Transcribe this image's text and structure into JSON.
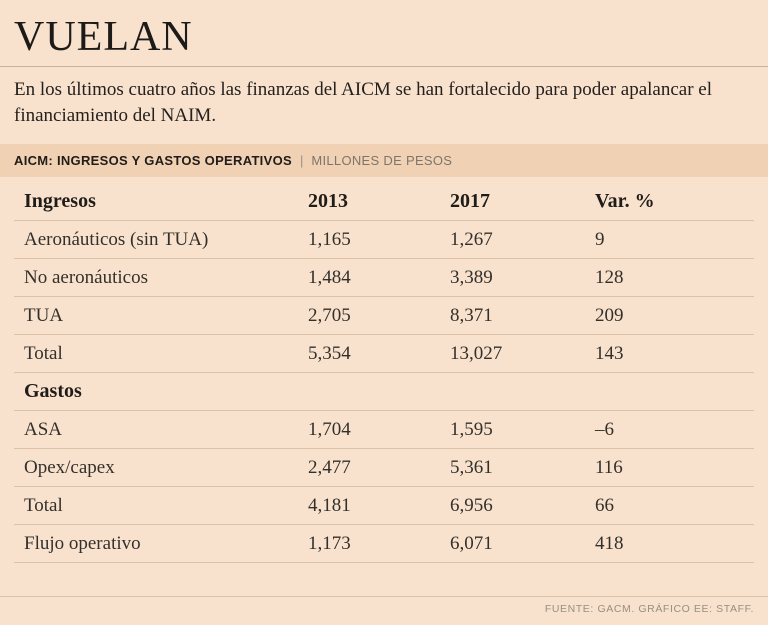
{
  "title": "VUELAN",
  "subtitle": "En los últimos cuatro años las finanzas del AICM se han fortalecido para poder apalancar el financiamiento del NAIM.",
  "band": {
    "title": "AICM: INGRESOS Y GASTOS OPERATIVOS",
    "separator": "|",
    "unit": "MILLONES DE PESOS"
  },
  "source": "FUENTE: GACM.  GRÁFICO EE: STAFF.",
  "colors": {
    "background": "#f9e2cd",
    "band_background": "#f1d1b3",
    "rule": "#d9c2a8",
    "text": "#2e2a26",
    "muted_text": "#988e82"
  },
  "chart_data": {
    "type": "table",
    "title": "AICM: INGRESOS Y GASTOS OPERATIVOS",
    "unit": "MILLONES DE PESOS",
    "columns": [
      "2013",
      "2017",
      "Var. %"
    ],
    "sections": [
      {
        "header": "Ingresos",
        "rows": [
          {
            "label": "Aeronáuticos (sin TUA)",
            "y2013": "1,165",
            "y2017": "1,267",
            "var": "9"
          },
          {
            "label": "No aeronáuticos",
            "y2013": "1,484",
            "y2017": "3,389",
            "var": "128"
          },
          {
            "label": "TUA",
            "y2013": "2,705",
            "y2017": "8,371",
            "var": "209"
          },
          {
            "label": "Total",
            "y2013": "5,354",
            "y2017": "13,027",
            "var": "143"
          }
        ]
      },
      {
        "header": "Gastos",
        "rows": [
          {
            "label": "ASA",
            "y2013": "1,704",
            "y2017": "1,595",
            "var": "–6"
          },
          {
            "label": "Opex/capex",
            "y2013": "2,477",
            "y2017": "5,361",
            "var": "116"
          },
          {
            "label": "Total",
            "y2013": "4,181",
            "y2017": "6,956",
            "var": "66"
          },
          {
            "label": "Flujo operativo",
            "y2013": "1,173",
            "y2017": "6,071",
            "var": "418"
          }
        ]
      }
    ]
  }
}
